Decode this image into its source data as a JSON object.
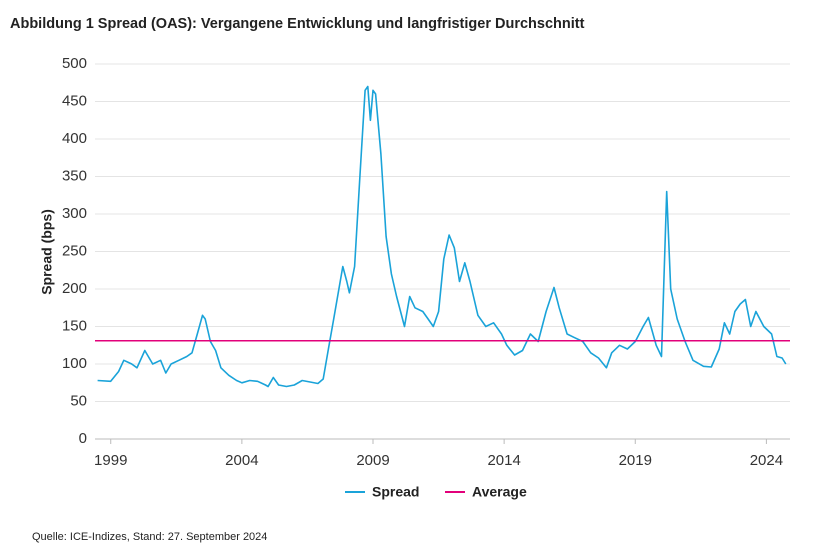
{
  "chart_data": {
    "type": "line",
    "title": "Abbildung 1 Spread (OAS): Vergangene Entwicklung und langfristiger Durchschnitt",
    "y_label": "Spread (bps)",
    "source": "Quelle: ICE-Indizes, Stand: 27. September 2024",
    "x": [
      1998.5,
      1999.0,
      1999.3,
      1999.5,
      1999.8,
      2000.0,
      2000.3,
      2000.6,
      2000.9,
      2001.1,
      2001.3,
      2001.6,
      2001.9,
      2002.1,
      2002.3,
      2002.5,
      2002.6,
      2002.8,
      2003.0,
      2003.2,
      2003.5,
      2003.8,
      2004.0,
      2004.3,
      2004.6,
      2004.9,
      2005.0,
      2005.2,
      2005.4,
      2005.7,
      2006.0,
      2006.3,
      2006.6,
      2006.9,
      2007.1,
      2007.3,
      2007.5,
      2007.7,
      2007.85,
      2008.0,
      2008.1,
      2008.3,
      2008.5,
      2008.7,
      2008.8,
      2008.9,
      2009.0,
      2009.1,
      2009.3,
      2009.5,
      2009.7,
      2009.9,
      2010.2,
      2010.4,
      2010.6,
      2010.9,
      2011.1,
      2011.3,
      2011.5,
      2011.7,
      2011.9,
      2012.1,
      2012.3,
      2012.5,
      2012.7,
      2013.0,
      2013.3,
      2013.6,
      2013.9,
      2014.1,
      2014.4,
      2014.7,
      2015.0,
      2015.3,
      2015.6,
      2015.9,
      2016.1,
      2016.4,
      2016.7,
      2017.0,
      2017.3,
      2017.6,
      2017.9,
      2018.1,
      2018.4,
      2018.7,
      2019.0,
      2019.3,
      2019.5,
      2019.8,
      2020.0,
      2020.2,
      2020.35,
      2020.6,
      2020.9,
      2021.2,
      2021.6,
      2021.9,
      2022.2,
      2022.4,
      2022.6,
      2022.8,
      2023.0,
      2023.2,
      2023.4,
      2023.6,
      2023.9,
      2024.2,
      2024.4,
      2024.6,
      2024.74
    ],
    "series": [
      {
        "name": "Spread",
        "color": "#1aa3d9",
        "values": [
          78,
          77,
          90,
          105,
          100,
          95,
          118,
          100,
          105,
          88,
          100,
          105,
          110,
          115,
          140,
          165,
          160,
          130,
          118,
          95,
          85,
          78,
          75,
          78,
          77,
          72,
          70,
          82,
          72,
          70,
          72,
          78,
          76,
          74,
          80,
          120,
          160,
          200,
          230,
          210,
          195,
          230,
          350,
          465,
          470,
          425,
          465,
          460,
          380,
          270,
          220,
          190,
          150,
          190,
          175,
          170,
          160,
          150,
          170,
          240,
          272,
          255,
          210,
          235,
          210,
          165,
          150,
          155,
          140,
          125,
          112,
          118,
          140,
          130,
          170,
          202,
          175,
          140,
          135,
          130,
          115,
          108,
          95,
          115,
          125,
          120,
          130,
          150,
          162,
          125,
          110,
          330,
          200,
          160,
          130,
          105,
          97,
          96,
          120,
          155,
          140,
          170,
          180,
          186,
          150,
          170,
          150,
          140,
          110,
          108,
          100
        ]
      }
    ],
    "average": {
      "name": "Average",
      "value": 131,
      "color": "#e2007a"
    },
    "xlim": [
      1998.4,
      2024.9
    ],
    "xticks": [
      1999,
      2004,
      2009,
      2014,
      2019,
      2024
    ],
    "ylim": [
      0,
      500
    ],
    "yticks": [
      0,
      50,
      100,
      150,
      200,
      250,
      300,
      350,
      400,
      450,
      500
    ],
    "grid": true
  }
}
